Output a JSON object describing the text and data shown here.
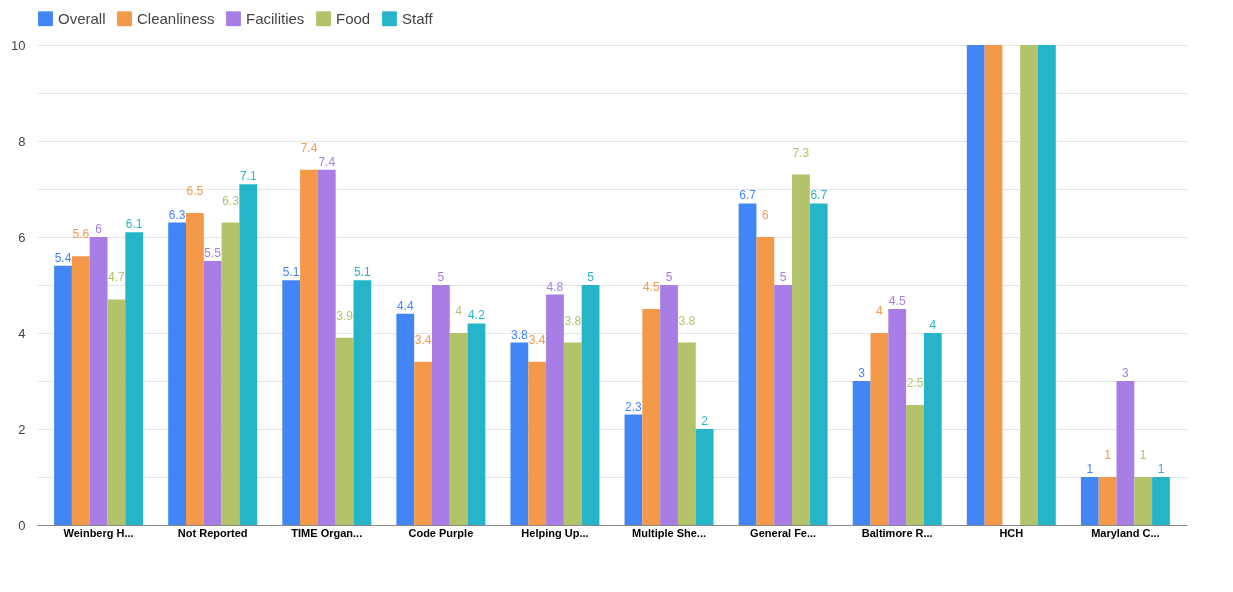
{
  "chart_data": {
    "type": "bar",
    "categories": [
      "Weinberg H...",
      "Not Reported",
      "TIME Organ...",
      "Code Purple",
      "Helping Up...",
      "Multiple She...",
      "General Fe...",
      "Baltimore R...",
      "HCH",
      "Maryland C..."
    ],
    "series": [
      {
        "name": "Overall",
        "color": "#4285f4",
        "values": [
          5.4,
          6.3,
          5.1,
          4.4,
          3.8,
          2.3,
          6.7,
          3,
          10,
          1
        ],
        "value_labels": [
          "5.4",
          "6.3",
          "5.1",
          "4.4",
          "3.8",
          "2.3",
          "6.7",
          "3",
          null,
          "1"
        ]
      },
      {
        "name": "Cleanliness",
        "color": "#f4994a",
        "values": [
          5.6,
          6.5,
          7.4,
          3.4,
          3.4,
          4.5,
          6,
          4,
          10,
          1
        ],
        "value_labels": [
          "5.6",
          "6.5",
          "7.4",
          "3.4",
          "3.4",
          "4.5",
          "6",
          "4",
          null,
          "1"
        ]
      },
      {
        "name": "Facilities",
        "color": "#a87ee6",
        "values": [
          6,
          5.5,
          7.4,
          5,
          4.8,
          5,
          5,
          4.5,
          null,
          3
        ],
        "value_labels": [
          "6",
          "5.5",
          "7.4",
          "5",
          "4.8",
          "5",
          "5",
          "4.5",
          null,
          "3"
        ]
      },
      {
        "name": "Food",
        "color": "#b3c36a",
        "values": [
          4.7,
          6.3,
          3.9,
          4,
          3.8,
          3.8,
          7.3,
          2.5,
          10,
          1
        ],
        "value_labels": [
          "4.7",
          "6.3",
          "3.9",
          "4",
          "3.8",
          "3.8",
          "7.3",
          "2.5",
          null,
          "1"
        ]
      },
      {
        "name": "Staff",
        "color": "#26b5c8",
        "values": [
          6.1,
          7.1,
          5.1,
          4.2,
          5,
          2,
          6.7,
          4,
          10,
          1
        ],
        "value_labels": [
          "6.1",
          "7.1",
          "5.1",
          "4.2",
          "5",
          "2",
          "6.7",
          "4",
          null,
          "1"
        ]
      }
    ],
    "ylim": [
      0,
      10
    ],
    "yticks": [
      0,
      {
        "value": 1,
        "label": null
      },
      2,
      {
        "value": 3,
        "label": null
      },
      4,
      {
        "value": 5,
        "label": null
      },
      6,
      {
        "value": 7,
        "label": null
      },
      8,
      {
        "value": 9,
        "label": null
      },
      10
    ],
    "grid": true,
    "legend": "top left"
  }
}
